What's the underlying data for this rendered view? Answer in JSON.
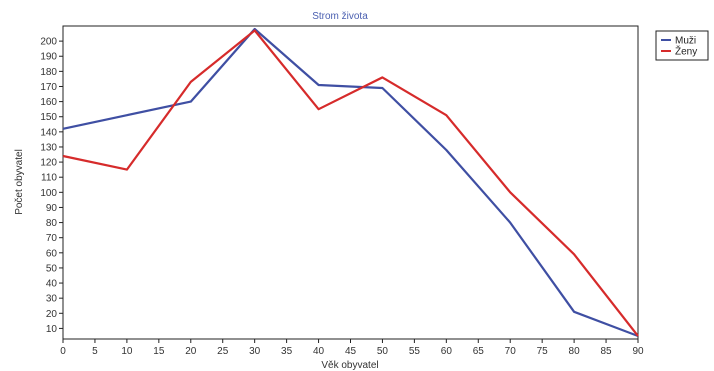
{
  "chart_data": {
    "type": "line",
    "title": "Strom života",
    "xlabel": "Věk obyvatel",
    "ylabel": "Počet obyvatel",
    "x": [
      0,
      10,
      20,
      30,
      40,
      50,
      60,
      70,
      80,
      90
    ],
    "xticks": [
      0,
      5,
      10,
      15,
      20,
      25,
      30,
      35,
      40,
      45,
      50,
      55,
      60,
      65,
      70,
      75,
      80,
      85,
      90
    ],
    "yticks": [
      10,
      20,
      30,
      40,
      50,
      60,
      70,
      80,
      90,
      100,
      110,
      120,
      130,
      140,
      150,
      160,
      170,
      180,
      190,
      200
    ],
    "xlim": [
      0,
      90
    ],
    "ylim": [
      3,
      210
    ],
    "grid": false,
    "legend_position": "top-right",
    "series": [
      {
        "name": "Muži",
        "color": "#3f4fa3",
        "values": [
          142,
          151,
          160,
          208,
          171,
          169,
          128,
          80,
          21,
          5
        ]
      },
      {
        "name": "Ženy",
        "color": "#d62b2b",
        "values": [
          124,
          115,
          173,
          207,
          155,
          176,
          151,
          100,
          59,
          5
        ]
      }
    ]
  },
  "colors": {
    "title": "#4a5fb0",
    "axis": "#222222",
    "background": "#ffffff"
  }
}
